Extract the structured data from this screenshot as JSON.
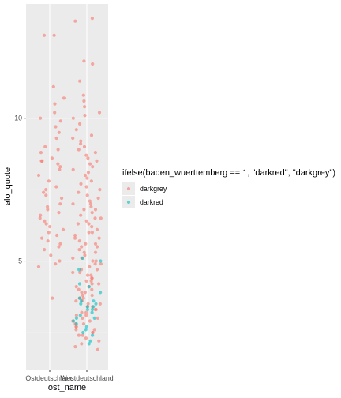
{
  "chart_data": {
    "type": "scatter",
    "subtype": "jitter",
    "xlabel": "ost_name",
    "ylabel": "alo_quote",
    "categories": [
      "Ostdeutschland",
      "Westdeutschland"
    ],
    "ylim": [
      1.2,
      14.0
    ],
    "yticks": [
      5,
      10
    ],
    "grid": true,
    "legend": {
      "title": "ifelse(baden_wuerttemberg == 1, \"darkred\", \"darkgrey\")",
      "placement": "right",
      "entries": [
        {
          "label": "darkgrey",
          "color": "#F8766D"
        },
        {
          "label": "darkred",
          "color": "#00BFC4"
        }
      ]
    },
    "series": [
      {
        "name": "darkgrey",
        "color": "#F8766D",
        "points": [
          [
            "Ostdeutschland",
            12.9
          ],
          [
            "Ostdeutschland",
            12.9
          ],
          [
            "Ostdeutschland",
            11.1
          ],
          [
            "Ostdeutschland",
            10.7
          ],
          [
            "Ostdeutschland",
            10.5
          ],
          [
            "Ostdeutschland",
            10.2
          ],
          [
            "Ostdeutschland",
            10.0
          ],
          [
            "Ostdeutschland",
            9.9
          ],
          [
            "Ostdeutschland",
            9.7
          ],
          [
            "Ostdeutschland",
            9.5
          ],
          [
            "Ostdeutschland",
            9.3
          ],
          [
            "Ostdeutschland",
            9.0
          ],
          [
            "Ostdeutschland",
            8.9
          ],
          [
            "Ostdeutschland",
            8.8
          ],
          [
            "Ostdeutschland",
            8.6
          ],
          [
            "Ostdeutschland",
            8.5
          ],
          [
            "Ostdeutschland",
            8.5
          ],
          [
            "Ostdeutschland",
            8.4
          ],
          [
            "Ostdeutschland",
            8.3
          ],
          [
            "Ostdeutschland",
            8.2
          ],
          [
            "Ostdeutschland",
            8.0
          ],
          [
            "Ostdeutschland",
            7.8
          ],
          [
            "Ostdeutschland",
            7.6
          ],
          [
            "Ostdeutschland",
            7.5
          ],
          [
            "Ostdeutschland",
            7.4
          ],
          [
            "Ostdeutschland",
            7.3
          ],
          [
            "Ostdeutschland",
            7.2
          ],
          [
            "Ostdeutschland",
            7.0
          ],
          [
            "Ostdeutschland",
            6.9
          ],
          [
            "Ostdeutschland",
            6.8
          ],
          [
            "Ostdeutschland",
            6.7
          ],
          [
            "Ostdeutschland",
            6.6
          ],
          [
            "Ostdeutschland",
            6.5
          ],
          [
            "Ostdeutschland",
            6.4
          ],
          [
            "Ostdeutschland",
            6.3
          ],
          [
            "Ostdeutschland",
            6.2
          ],
          [
            "Ostdeutschland",
            6.1
          ],
          [
            "Ostdeutschland",
            6.0
          ],
          [
            "Ostdeutschland",
            5.9
          ],
          [
            "Ostdeutschland",
            5.8
          ],
          [
            "Ostdeutschland",
            5.7
          ],
          [
            "Ostdeutschland",
            5.6
          ],
          [
            "Ostdeutschland",
            5.5
          ],
          [
            "Ostdeutschland",
            5.4
          ],
          [
            "Ostdeutschland",
            5.2
          ],
          [
            "Ostdeutschland",
            5.0
          ],
          [
            "Ostdeutschland",
            4.9
          ],
          [
            "Ostdeutschland",
            4.8
          ],
          [
            "Ostdeutschland",
            3.7
          ],
          [
            "Westdeutschland",
            13.4
          ],
          [
            "Westdeutschland",
            13.5
          ],
          [
            "Westdeutschland",
            12.0
          ],
          [
            "Westdeutschland",
            11.9
          ],
          [
            "Westdeutschland",
            11.3
          ],
          [
            "Westdeutschland",
            10.8
          ],
          [
            "Westdeutschland",
            10.6
          ],
          [
            "Westdeutschland",
            10.4
          ],
          [
            "Westdeutschland",
            10.2
          ],
          [
            "Westdeutschland",
            10.1
          ],
          [
            "Westdeutschland",
            10.0
          ],
          [
            "Westdeutschland",
            9.8
          ],
          [
            "Westdeutschland",
            9.6
          ],
          [
            "Westdeutschland",
            9.4
          ],
          [
            "Westdeutschland",
            9.3
          ],
          [
            "Westdeutschland",
            9.2
          ],
          [
            "Westdeutschland",
            9.1
          ],
          [
            "Westdeutschland",
            9.0
          ],
          [
            "Westdeutschland",
            8.9
          ],
          [
            "Westdeutschland",
            8.8
          ],
          [
            "Westdeutschland",
            8.7
          ],
          [
            "Westdeutschland",
            8.6
          ],
          [
            "Westdeutschland",
            8.5
          ],
          [
            "Westdeutschland",
            8.4
          ],
          [
            "Westdeutschland",
            8.3
          ],
          [
            "Westdeutschland",
            8.2
          ],
          [
            "Westdeutschland",
            8.1
          ],
          [
            "Westdeutschland",
            8.0
          ],
          [
            "Westdeutschland",
            7.9
          ],
          [
            "Westdeutschland",
            7.8
          ],
          [
            "Westdeutschland",
            7.7
          ],
          [
            "Westdeutschland",
            7.6
          ],
          [
            "Westdeutschland",
            7.5
          ],
          [
            "Westdeutschland",
            7.4
          ],
          [
            "Westdeutschland",
            7.3
          ],
          [
            "Westdeutschland",
            7.2
          ],
          [
            "Westdeutschland",
            7.1
          ],
          [
            "Westdeutschland",
            7.0
          ],
          [
            "Westdeutschland",
            7.0
          ],
          [
            "Westdeutschland",
            6.9
          ],
          [
            "Westdeutschland",
            6.8
          ],
          [
            "Westdeutschland",
            6.8
          ],
          [
            "Westdeutschland",
            6.7
          ],
          [
            "Westdeutschland",
            6.6
          ],
          [
            "Westdeutschland",
            6.5
          ],
          [
            "Westdeutschland",
            6.5
          ],
          [
            "Westdeutschland",
            6.4
          ],
          [
            "Westdeutschland",
            6.3
          ],
          [
            "Westdeutschland",
            6.3
          ],
          [
            "Westdeutschland",
            6.2
          ],
          [
            "Westdeutschland",
            6.1
          ],
          [
            "Westdeutschland",
            6.0
          ],
          [
            "Westdeutschland",
            6.0
          ],
          [
            "Westdeutschland",
            5.9
          ],
          [
            "Westdeutschland",
            5.8
          ],
          [
            "Westdeutschland",
            5.8
          ],
          [
            "Westdeutschland",
            5.7
          ],
          [
            "Westdeutschland",
            5.6
          ],
          [
            "Westdeutschland",
            5.6
          ],
          [
            "Westdeutschland",
            5.5
          ],
          [
            "Westdeutschland",
            5.5
          ],
          [
            "Westdeutschland",
            5.4
          ],
          [
            "Westdeutschland",
            5.3
          ],
          [
            "Westdeutschland",
            5.3
          ],
          [
            "Westdeutschland",
            5.2
          ],
          [
            "Westdeutschland",
            5.1
          ],
          [
            "Westdeutschland",
            5.1
          ],
          [
            "Westdeutschland",
            5.0
          ],
          [
            "Westdeutschland",
            5.0
          ],
          [
            "Westdeutschland",
            4.9
          ],
          [
            "Westdeutschland",
            4.9
          ],
          [
            "Westdeutschland",
            4.8
          ],
          [
            "Westdeutschland",
            4.7
          ],
          [
            "Westdeutschland",
            4.7
          ],
          [
            "Westdeutschland",
            4.6
          ],
          [
            "Westdeutschland",
            4.6
          ],
          [
            "Westdeutschland",
            4.5
          ],
          [
            "Westdeutschland",
            4.5
          ],
          [
            "Westdeutschland",
            4.4
          ],
          [
            "Westdeutschland",
            4.4
          ],
          [
            "Westdeutschland",
            4.3
          ],
          [
            "Westdeutschland",
            4.3
          ],
          [
            "Westdeutschland",
            4.2
          ],
          [
            "Westdeutschland",
            4.2
          ],
          [
            "Westdeutschland",
            4.1
          ],
          [
            "Westdeutschland",
            4.1
          ],
          [
            "Westdeutschland",
            4.0
          ],
          [
            "Westdeutschland",
            4.0
          ],
          [
            "Westdeutschland",
            3.9
          ],
          [
            "Westdeutschland",
            3.9
          ],
          [
            "Westdeutschland",
            3.8
          ],
          [
            "Westdeutschland",
            3.8
          ],
          [
            "Westdeutschland",
            3.7
          ],
          [
            "Westdeutschland",
            3.7
          ],
          [
            "Westdeutschland",
            3.6
          ],
          [
            "Westdeutschland",
            3.6
          ],
          [
            "Westdeutschland",
            3.5
          ],
          [
            "Westdeutschland",
            3.5
          ],
          [
            "Westdeutschland",
            3.4
          ],
          [
            "Westdeutschland",
            3.4
          ],
          [
            "Westdeutschland",
            3.3
          ],
          [
            "Westdeutschland",
            3.3
          ],
          [
            "Westdeutschland",
            3.2
          ],
          [
            "Westdeutschland",
            3.2
          ],
          [
            "Westdeutschland",
            3.1
          ],
          [
            "Westdeutschland",
            3.1
          ],
          [
            "Westdeutschland",
            3.0
          ],
          [
            "Westdeutschland",
            3.0
          ],
          [
            "Westdeutschland",
            2.9
          ],
          [
            "Westdeutschland",
            2.9
          ],
          [
            "Westdeutschland",
            2.8
          ],
          [
            "Westdeutschland",
            2.8
          ],
          [
            "Westdeutschland",
            2.7
          ],
          [
            "Westdeutschland",
            2.7
          ],
          [
            "Westdeutschland",
            2.6
          ],
          [
            "Westdeutschland",
            2.6
          ],
          [
            "Westdeutschland",
            2.5
          ],
          [
            "Westdeutschland",
            2.5
          ],
          [
            "Westdeutschland",
            2.4
          ],
          [
            "Westdeutschland",
            2.4
          ],
          [
            "Westdeutschland",
            2.3
          ],
          [
            "Westdeutschland",
            2.2
          ],
          [
            "Westdeutschland",
            2.1
          ],
          [
            "Westdeutschland",
            2.0
          ],
          [
            "Westdeutschland",
            1.9
          ]
        ]
      },
      {
        "name": "darkred",
        "color": "#00BFC4",
        "points": [
          [
            "Westdeutschland",
            5.1
          ],
          [
            "Westdeutschland",
            5.0
          ],
          [
            "Westdeutschland",
            4.7
          ],
          [
            "Westdeutschland",
            4.2
          ],
          [
            "Westdeutschland",
            4.1
          ],
          [
            "Westdeutschland",
            3.9
          ],
          [
            "Westdeutschland",
            3.7
          ],
          [
            "Westdeutschland",
            3.6
          ],
          [
            "Westdeutschland",
            3.6
          ],
          [
            "Westdeutschland",
            3.5
          ],
          [
            "Westdeutschland",
            3.5
          ],
          [
            "Westdeutschland",
            3.4
          ],
          [
            "Westdeutschland",
            3.4
          ],
          [
            "Westdeutschland",
            3.3
          ],
          [
            "Westdeutschland",
            3.3
          ],
          [
            "Westdeutschland",
            3.2
          ],
          [
            "Westdeutschland",
            3.1
          ],
          [
            "Westdeutschland",
            3.0
          ],
          [
            "Westdeutschland",
            3.0
          ],
          [
            "Westdeutschland",
            2.9
          ],
          [
            "Westdeutschland",
            2.8
          ],
          [
            "Westdeutschland",
            2.7
          ],
          [
            "Westdeutschland",
            2.6
          ],
          [
            "Westdeutschland",
            2.5
          ],
          [
            "Westdeutschland",
            2.4
          ],
          [
            "Westdeutschland",
            2.2
          ],
          [
            "Westdeutschland",
            2.1
          ]
        ]
      }
    ]
  }
}
